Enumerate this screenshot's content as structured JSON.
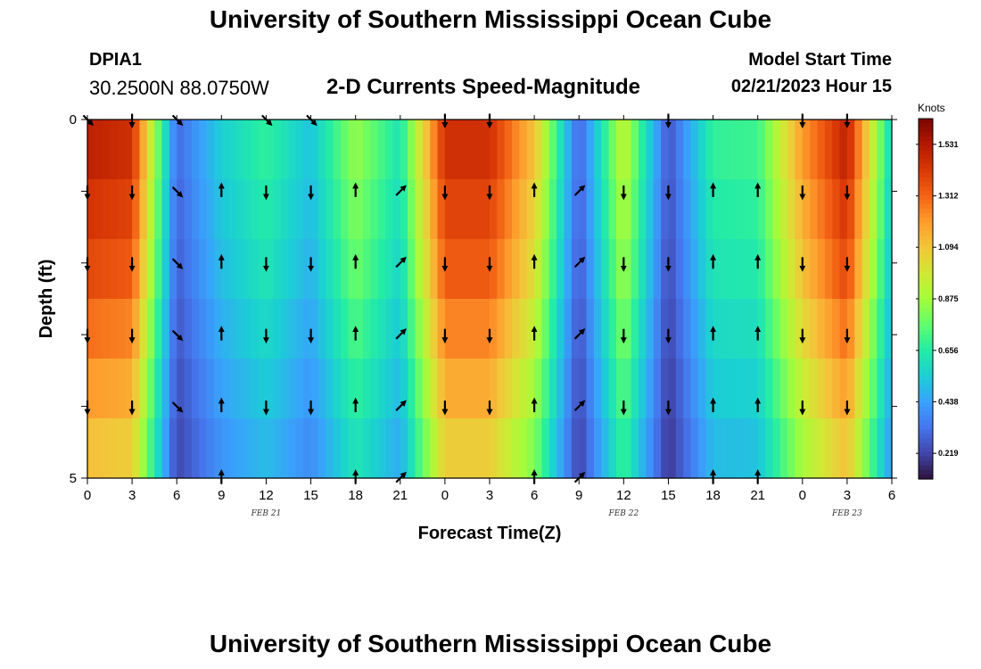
{
  "header": {
    "title": "University of Southern Mississippi Ocean Cube",
    "station_id": "DPIA1",
    "station_coords": "30.2500N  88.0750W",
    "subtitle": "2-D Currents Speed-Magnitude",
    "model_start_label": "Model Start Time",
    "model_start_value": "02/21/2023 Hour 15"
  },
  "footer": {
    "title": "University of Southern Mississippi Ocean Cube"
  },
  "colors": {
    "colormap": [
      "#30123b",
      "#4145ab",
      "#4675ed",
      "#39a2fc",
      "#1bcfd4",
      "#24eca6",
      "#61fc6c",
      "#a4fc3b",
      "#d1e834",
      "#f3c63a",
      "#fe9b2d",
      "#f36315",
      "#d93806",
      "#b11901",
      "#7a0403"
    ],
    "arrow": "#000000",
    "frame": "#000000"
  },
  "chart_data": {
    "type": "heatmap",
    "title": "2-D Currents Speed-Magnitude",
    "xlabel": "Forecast Time(Z)",
    "ylabel": "Depth (ft)",
    "x_tick_labels": [
      "0",
      "3",
      "6",
      "9",
      "12",
      "15",
      "18",
      "21",
      "0",
      "3",
      "6",
      "9",
      "12",
      "15",
      "18",
      "21",
      "0",
      "3",
      "6"
    ],
    "y_tick_labels": [
      "0",
      "5"
    ],
    "y_range": [
      0,
      5
    ],
    "date_labels": [
      {
        "label": "FEB 21",
        "at_hour": 12
      },
      {
        "label": "FEB 22",
        "at_hour": 36
      },
      {
        "label": "FEB 23",
        "at_hour": 51
      }
    ],
    "colorbar": {
      "unit": "Knots",
      "min": 0.11,
      "max": 1.64,
      "tick_labels": [
        "0.219",
        "0.438",
        "0.656",
        "0.875",
        "1.094",
        "1.312",
        "1.531"
      ],
      "tick_values": [
        0.219,
        0.438,
        0.656,
        0.875,
        1.094,
        1.312,
        1.531
      ]
    },
    "time_hours": [
      0,
      3,
      6,
      9,
      12,
      15,
      18,
      21,
      24,
      27,
      30,
      33,
      36,
      39,
      42,
      45,
      48,
      51,
      54
    ],
    "surface_speed_knots": [
      1.5,
      1.45,
      0.3,
      0.55,
      0.68,
      0.52,
      0.85,
      0.62,
      1.45,
      1.45,
      1.1,
      0.28,
      0.95,
      0.25,
      0.68,
      0.7,
      1.2,
      1.5,
      0.55
    ],
    "depth_rows_ft": [
      0,
      1,
      2,
      3,
      4,
      5
    ],
    "depth_factors": [
      1.0,
      0.96,
      0.92,
      0.86,
      0.8,
      0.74
    ],
    "arrow_directions": {
      "times": [
        0,
        3,
        6,
        9,
        12,
        15,
        18,
        21,
        24,
        27,
        30,
        33,
        36,
        39,
        42,
        45,
        48,
        51
      ],
      "depths": [
        0,
        1,
        2,
        3,
        4,
        5
      ],
      "row_0": [
        "SE",
        "S",
        "SE",
        "",
        "SE",
        "SE",
        "",
        "",
        "S",
        "S",
        "",
        "",
        "",
        "S",
        "",
        "",
        "S",
        "S"
      ],
      "row_1": [
        "S",
        "S",
        "SE",
        "N",
        "S",
        "S",
        "N",
        "NE",
        "S",
        "S",
        "N",
        "NE",
        "S",
        "S",
        "N",
        "N",
        "S",
        "S"
      ],
      "row_2": [
        "S",
        "S",
        "SE",
        "N",
        "S",
        "S",
        "N",
        "NE",
        "S",
        "S",
        "N",
        "NE",
        "S",
        "S",
        "N",
        "N",
        "S",
        "S"
      ],
      "row_3": [
        "S",
        "S",
        "SE",
        "N",
        "S",
        "S",
        "N",
        "NE",
        "S",
        "S",
        "N",
        "NE",
        "S",
        "S",
        "N",
        "N",
        "S",
        "S"
      ],
      "row_4": [
        "S",
        "S",
        "SE",
        "N",
        "S",
        "S",
        "N",
        "NE",
        "S",
        "S",
        "N",
        "NE",
        "S",
        "S",
        "N",
        "N",
        "S",
        "S"
      ],
      "row_5": [
        "",
        "",
        "",
        "N",
        "",
        "",
        "N",
        "NE",
        "",
        "",
        "N",
        "NE",
        "",
        "",
        "N",
        "N",
        "",
        ""
      ]
    }
  }
}
